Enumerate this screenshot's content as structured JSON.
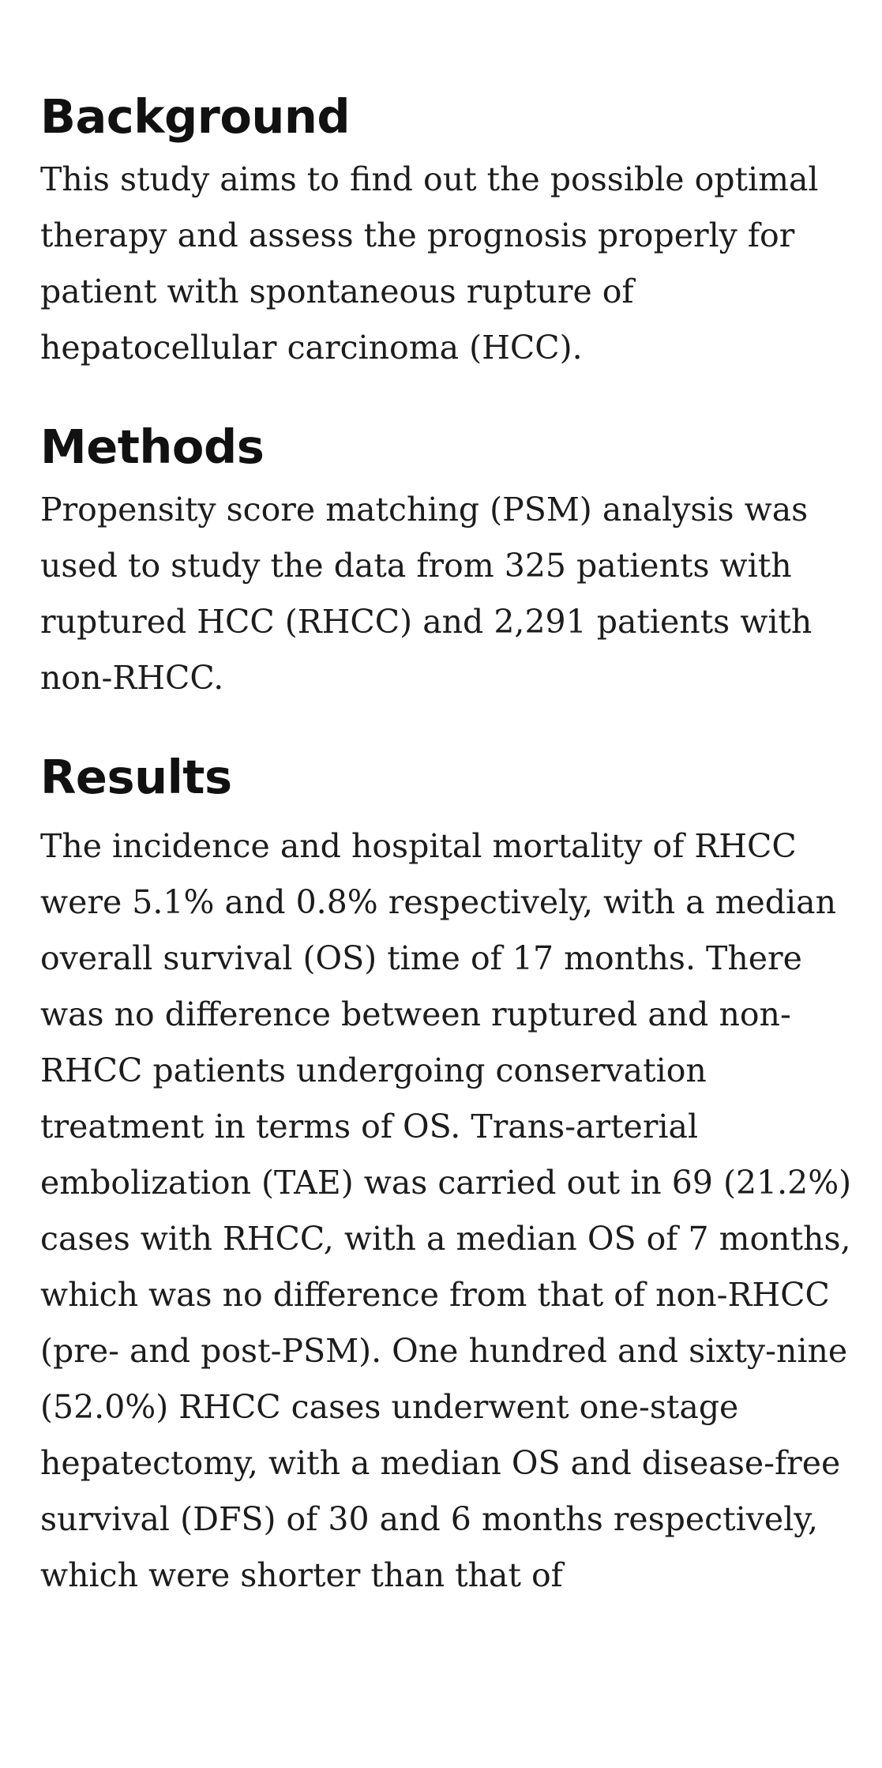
{
  "sections": {
    "background": {
      "heading": "Background",
      "body": "This study aims to find out the possible optimal therapy and assess the prognosis properly for patient with spontaneous rupture of hepatocellular carcinoma (HCC)."
    },
    "methods": {
      "heading": "Methods",
      "body": "Propensity score matching (PSM) analysis was used to study the data from 325 patients with ruptured HCC (RHCC) and 2,291 patients with non-RHCC."
    },
    "results": {
      "heading": "Results",
      "body": "The incidence and hospital mortality of RHCC were 5.1% and 0.8% respectively, with a median overall survival (OS) time of 17 months. There was no difference between ruptured and non-RHCC patients undergoing conservation treatment in terms of OS. Trans-arterial embolization (TAE) was carried out in 69 (21.2%) cases with RHCC, with a median OS of 7 months, which was no difference from that of non-RHCC (pre- and post-PSM). One hundred and sixty-nine (52.0%) RHCC cases underwent one-stage hepatectomy, with a median OS and disease-free survival (DFS) of 30 and 6 months respectively, which were shorter than that of"
    }
  }
}
